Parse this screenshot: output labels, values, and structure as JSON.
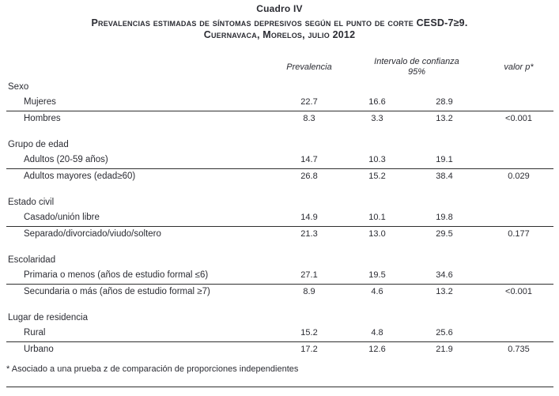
{
  "title": {
    "label": "Cuadro IV",
    "line1": "Prevalencias estimadas de síntomas depresivos según el punto de corte CESD-7≥9.",
    "line2": "Cuernavaca, Morelos, julio 2012"
  },
  "columns": {
    "prevalence": "Prevalencia",
    "ci_line1": "Intervalo de confianza",
    "ci_line2": "95%",
    "p_value": "valor p*"
  },
  "table": {
    "sections": [
      {
        "group": "Sexo",
        "rows": [
          {
            "label": "Mujeres",
            "prev": "22.7",
            "ci_low": "16.6",
            "ci_high": "28.9",
            "p": ""
          },
          {
            "label": "Hombres",
            "prev": "8.3",
            "ci_low": "3.3",
            "ci_high": "13.2",
            "p": "<0.001"
          }
        ]
      },
      {
        "group": "Grupo de edad",
        "rows": [
          {
            "label": "Adultos (20-59 años)",
            "prev": "14.7",
            "ci_low": "10.3",
            "ci_high": "19.1",
            "p": ""
          },
          {
            "label": "Adultos mayores (edad≥60)",
            "prev": "26.8",
            "ci_low": "15.2",
            "ci_high": "38.4",
            "p": "0.029"
          }
        ]
      },
      {
        "group": "Estado civil",
        "rows": [
          {
            "label": "Casado/unión libre",
            "prev": "14.9",
            "ci_low": "10.1",
            "ci_high": "19.8",
            "p": ""
          },
          {
            "label": "Separado/divorciado/viudo/soltero",
            "prev": "21.3",
            "ci_low": "13.0",
            "ci_high": "29.5",
            "p": "0.177"
          }
        ]
      },
      {
        "group": "Escolaridad",
        "rows": [
          {
            "label": "Primaria o menos (años de estudio formal ≤6)",
            "prev": "27.1",
            "ci_low": "19.5",
            "ci_high": "34.6",
            "p": ""
          },
          {
            "label": "Secundaria o más (años de estudio formal ≥7)",
            "prev": "8.9",
            "ci_low": "4.6",
            "ci_high": "13.2",
            "p": "<0.001"
          }
        ]
      },
      {
        "group": "Lugar de residencia",
        "rows": [
          {
            "label": "Rural",
            "prev": "15.2",
            "ci_low": "4.8",
            "ci_high": "25.6",
            "p": ""
          },
          {
            "label": "Urbano",
            "prev": "17.2",
            "ci_low": "12.6",
            "ci_high": "21.9",
            "p": "0.735"
          }
        ]
      }
    ]
  },
  "footnote": "* Asociado a una prueba z de comparación de proporciones independientes"
}
